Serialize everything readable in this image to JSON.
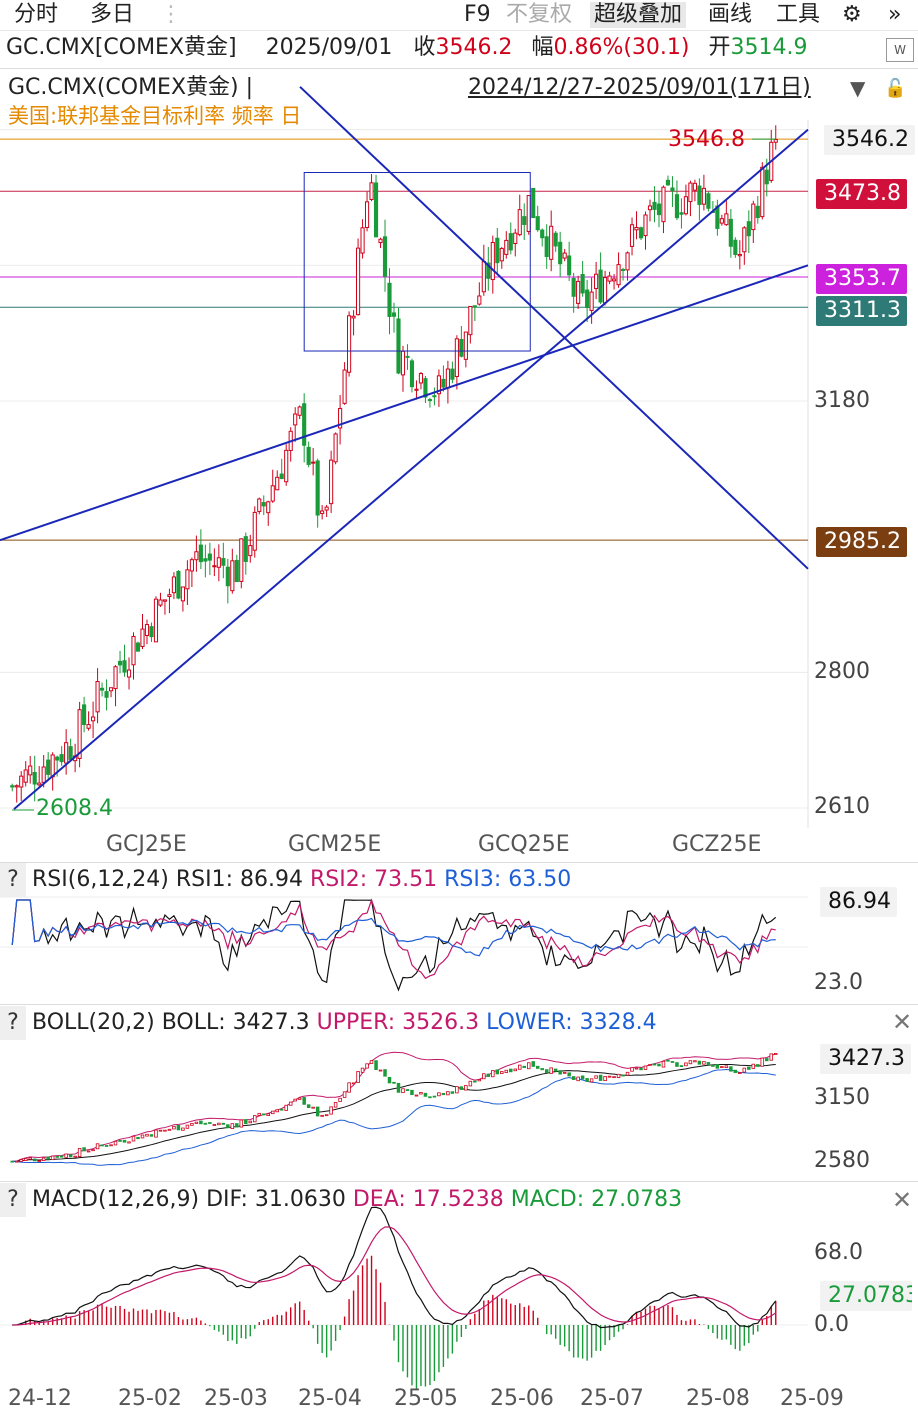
{
  "toolbar": {
    "tabs": [
      "分时",
      "多日"
    ],
    "items": [
      "F9",
      "不复权",
      "超级叠加",
      "画线",
      "工具"
    ]
  },
  "quote": {
    "symbol": "GC.CMX[COMEX黄金]",
    "date": "2025/09/01",
    "close_label": "收",
    "close": "3546.2",
    "change_label": "幅",
    "change": "0.86%(30.1)",
    "open_label": "开",
    "open": "3514.9"
  },
  "chart_header": {
    "title": "GC.CMX(COMEX黄金) |",
    "range": "2024/12/27-2025/09/01(171日)",
    "overlay": "美国:联邦基金目标利率 频率 日"
  },
  "price_axis": [
    "3180",
    "2800",
    "2610"
  ],
  "price_tags": {
    "last": "3546.2",
    "l1": "3473.8",
    "l2": "3353.7",
    "l3": "3311.3",
    "l4": "2985.2"
  },
  "annotations": {
    "high": "3546.8",
    "low": "2608.4"
  },
  "contract_labels": [
    "GCJ25E",
    "GCM25E",
    "GCQ25E",
    "GCZ25E"
  ],
  "rsi": {
    "name": "RSI(6,12,24)",
    "rsi1": "RSI1: 86.94",
    "rsi2": "RSI2: 73.51",
    "rsi3": "RSI3: 63.50",
    "tag": "86.94",
    "axis": [
      "23.0"
    ]
  },
  "boll": {
    "name": "BOLL(20,2)",
    "boll": "BOLL: 3427.3",
    "upper": "UPPER: 3526.3",
    "lower": "LOWER: 3328.4",
    "tag": "3427.3",
    "axis": [
      "3150",
      "2580"
    ]
  },
  "macd": {
    "name": "MACD(12,26,9)",
    "dif": "DIF: 31.0630",
    "dea": "DEA: 17.5238",
    "macd": "MACD: 27.0783",
    "tag": "27.0783",
    "axis": [
      "68.0",
      "0.0"
    ]
  },
  "date_axis": [
    "24-12",
    "25-02",
    "25-03",
    "25-04",
    "25-05",
    "25-06",
    "25-07",
    "25-08",
    "25-09"
  ],
  "help_glyph": "?",
  "colors": {
    "up": "#d0021b",
    "down": "#1a9b3a",
    "trendline": "#1b27b8",
    "fed_line": "#e58a00"
  },
  "chart_data": {
    "type": "line",
    "title": "GC.CMX(COMEX黄金)",
    "x_range": [
      "2024/12/27",
      "2025/09/01"
    ],
    "trading_days": 171,
    "price_series": {
      "name": "GC.CMX(COMEX黄金)",
      "x": [
        "2024-12-27",
        "2025-01-15",
        "2025-02-01",
        "2025-02-24",
        "2025-03-10",
        "2025-03-31",
        "2025-04-07",
        "2025-04-22",
        "2025-05-01",
        "2025-05-15",
        "2025-06-02",
        "2025-06-13",
        "2025-06-30",
        "2025-07-22",
        "2025-08-08",
        "2025-08-20",
        "2025-09-01"
      ],
      "values": [
        2640,
        2700,
        2820,
        2960,
        2945,
        3160,
        2990,
        3500,
        3250,
        3190,
        3390,
        3460,
        3310,
        3440,
        3480,
        3380,
        3546.2
      ]
    },
    "horizontal_levels": [
      3546.8,
      3473.8,
      3353.7,
      3311.3,
      2985.2
    ],
    "extremes": {
      "high": 3546.8,
      "low": 2608.4
    },
    "price_axis_ticks": [
      2610,
      2800,
      3180
    ],
    "rsi": {
      "rsi1": 86.94,
      "rsi2": 73.51,
      "rsi3": 63.5,
      "axis_ticks": [
        23.0
      ]
    },
    "boll": {
      "mid": 3427.3,
      "upper": 3526.3,
      "lower": 3328.4,
      "axis_ticks": [
        2580,
        3150
      ]
    },
    "macd": {
      "dif": 31.063,
      "dea": 17.5238,
      "macd": 27.0783,
      "axis_ticks": [
        0.0,
        68.0
      ]
    }
  }
}
